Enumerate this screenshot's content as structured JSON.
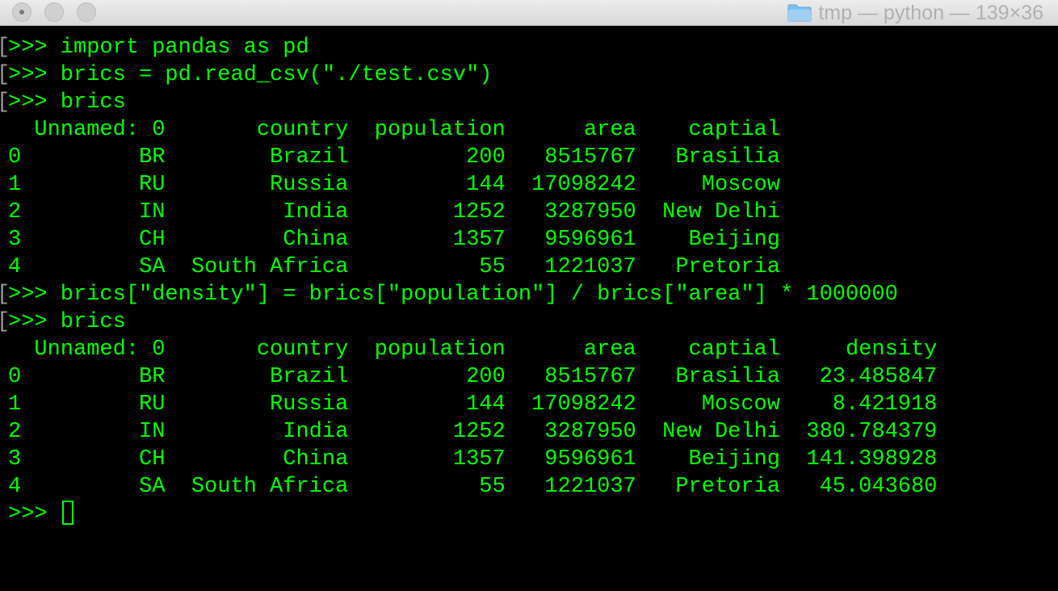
{
  "window": {
    "title": "tmp — python — 139×36",
    "folder_icon": "folder-icon",
    "buttons": [
      "close",
      "minimize",
      "zoom"
    ]
  },
  "terminal": {
    "lines": [
      {
        "text": ">>> import pandas as pd",
        "prompt": true
      },
      {
        "text": ">>> brics = pd.read_csv(\"./test.csv\")",
        "prompt": true
      },
      {
        "text": ">>> brics",
        "prompt": true
      },
      {
        "text": "  Unnamed: 0       country  population      area    captial",
        "prompt": false
      },
      {
        "text": "0         BR        Brazil         200   8515767   Brasilia",
        "prompt": false
      },
      {
        "text": "1         RU        Russia         144  17098242     Moscow",
        "prompt": false
      },
      {
        "text": "2         IN         India        1252   3287950  New Delhi",
        "prompt": false
      },
      {
        "text": "3         CH         China        1357   9596961    Beijing",
        "prompt": false
      },
      {
        "text": "4         SA  South Africa          55   1221037   Pretoria",
        "prompt": false
      },
      {
        "text": ">>> brics[\"density\"] = brics[\"population\"] / brics[\"area\"] * 1000000",
        "prompt": true
      },
      {
        "text": ">>> brics",
        "prompt": true
      },
      {
        "text": "  Unnamed: 0       country  population      area    captial     density",
        "prompt": false
      },
      {
        "text": "0         BR        Brazil         200   8515767   Brasilia   23.485847",
        "prompt": false
      },
      {
        "text": "1         RU        Russia         144  17098242     Moscow    8.421918",
        "prompt": false
      },
      {
        "text": "2         IN         India        1252   3287950  New Delhi  380.784379",
        "prompt": false
      },
      {
        "text": "3         CH         China        1357   9596961    Beijing  141.398928",
        "prompt": false
      },
      {
        "text": "4         SA  South Africa          55   1221037   Pretoria   45.043680",
        "prompt": false
      }
    ],
    "current_prompt": ">>> ",
    "colors": {
      "background": "#000000",
      "foreground": "#00ff00"
    }
  }
}
